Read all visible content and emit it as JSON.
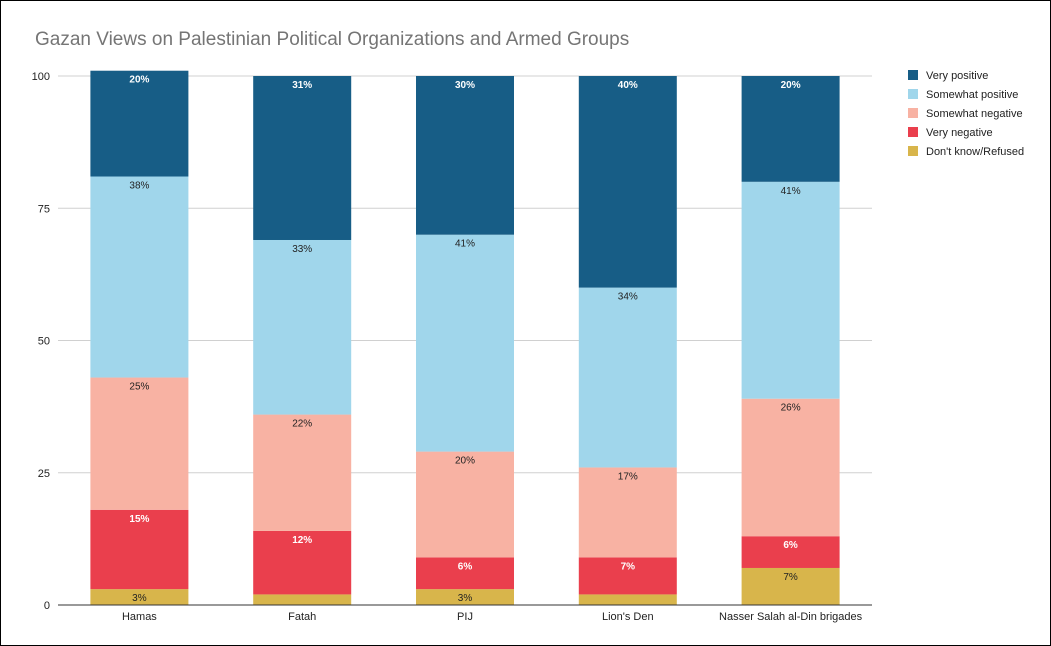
{
  "chart_data": {
    "type": "bar",
    "stacked": true,
    "title": "Gazan Views on Palestinian Political Organizations and Armed Groups",
    "categories": [
      "Hamas",
      "Fatah",
      "PIJ",
      "Lion's Den",
      "Nasser Salah al-Din brigades"
    ],
    "series": [
      {
        "name": "Don't know/Refused",
        "color": "#d8b54b",
        "values": [
          3,
          2,
          3,
          2,
          7
        ],
        "labels": [
          "3%",
          "",
          "3%",
          "",
          "7%"
        ],
        "label_color": "#222222"
      },
      {
        "name": "Very negative",
        "color": "#ea3f4d",
        "values": [
          15,
          12,
          6,
          7,
          6
        ],
        "labels": [
          "15%",
          "12%",
          "6%",
          "7%",
          "6%"
        ],
        "label_color": "#ffffff"
      },
      {
        "name": "Somewhat negative",
        "color": "#f8b2a3",
        "values": [
          25,
          22,
          20,
          17,
          26
        ],
        "labels": [
          "25%",
          "22%",
          "20%",
          "17%",
          "26%"
        ],
        "label_color": "#222222"
      },
      {
        "name": "Somewhat positive",
        "color": "#a0d6eb",
        "values": [
          38,
          33,
          41,
          34,
          41
        ],
        "labels": [
          "38%",
          "33%",
          "41%",
          "34%",
          "41%"
        ],
        "label_color": "#222222"
      },
      {
        "name": "Very positive",
        "color": "#175d86",
        "values": [
          20,
          31,
          30,
          40,
          20
        ],
        "labels": [
          "20%",
          "31%",
          "30%",
          "40%",
          "20%"
        ],
        "label_color": "#ffffff"
      }
    ],
    "legend_order": [
      "Very positive",
      "Somewhat positive",
      "Somewhat negative",
      "Very negative",
      "Don't know/Refused"
    ],
    "ylim": [
      0,
      100
    ],
    "yticks": [
      0,
      25,
      50,
      75,
      100
    ],
    "xlabel": "",
    "ylabel": "",
    "grid": true,
    "legend_position": "right"
  }
}
